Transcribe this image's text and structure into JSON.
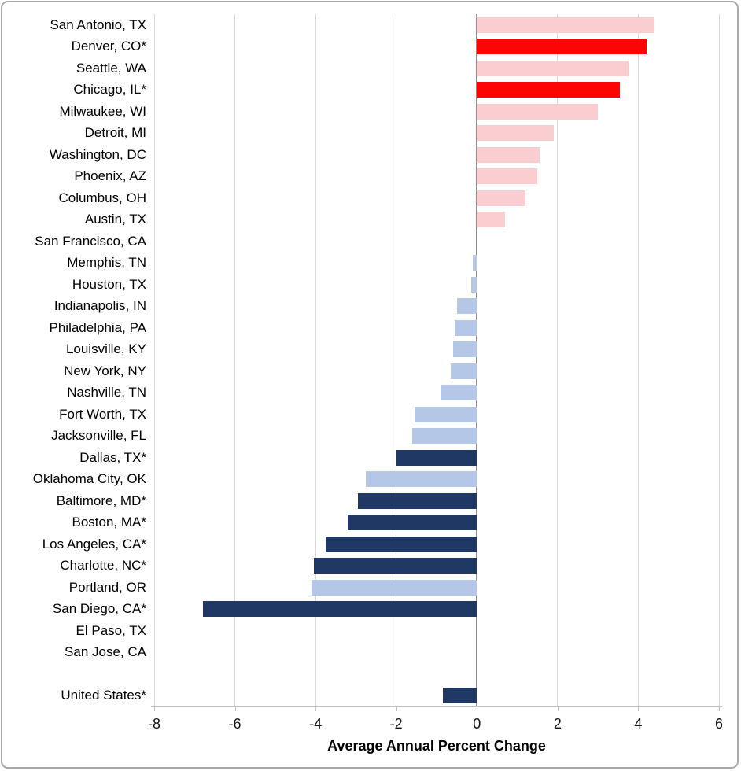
{
  "window": {
    "background": "#ffffff",
    "frame_border_color": "#a9a9a9"
  },
  "chart_data": {
    "type": "bar",
    "orientation": "horizontal",
    "title": "",
    "xlabel": "Average Annual Percent Change",
    "ylabel": "",
    "xlim": [
      -8,
      6
    ],
    "x_ticks": [
      -8,
      -6,
      -4,
      -2,
      0,
      2,
      4,
      6
    ],
    "x_tick_labels": [
      "-8",
      "-6",
      "-4",
      "-2",
      "0",
      "2",
      "4",
      "6"
    ],
    "grid": true,
    "legend": "none",
    "gap_before_last": true,
    "categories": [
      "San Antonio, TX",
      "Denver, CO*",
      "Seattle, WA",
      "Chicago, IL*",
      "Milwaukee, WI",
      "Detroit, MI",
      "Washington, DC",
      "Phoenix, AZ",
      "Columbus, OH",
      "Austin, TX",
      "San Francisco, CA",
      "Memphis, TN",
      "Houston, TX",
      "Indianapolis, IN",
      "Philadelphia, PA",
      "Louisville, KY",
      "New York, NY",
      "Nashville, TN",
      "Fort Worth, TX",
      "Jacksonville, FL",
      "Dallas, TX*",
      "Oklahoma City, OK",
      "Baltimore, MD*",
      "Boston, MA*",
      "Los Angeles, CA*",
      "Charlotte, NC*",
      "Portland, OR",
      "San Diego, CA*",
      "El Paso, TX",
      "San Jose, CA",
      "United States*"
    ],
    "values": [
      4.4,
      4.2,
      3.75,
      3.55,
      3.0,
      1.9,
      1.55,
      1.5,
      1.2,
      0.7,
      0.0,
      -0.1,
      -0.15,
      -0.5,
      -0.55,
      -0.6,
      -0.65,
      -0.9,
      -1.55,
      -1.6,
      -2.0,
      -2.75,
      -2.95,
      -3.2,
      -3.75,
      -4.05,
      -4.1,
      -6.8,
      0.0,
      0.0,
      -0.85
    ],
    "bar_color_keys": [
      "pink",
      "red",
      "pink",
      "red",
      "pink",
      "pink",
      "pink",
      "pink",
      "pink",
      "pink",
      "none",
      "light_blue",
      "light_blue",
      "light_blue",
      "light_blue",
      "light_blue",
      "light_blue",
      "light_blue",
      "light_blue",
      "light_blue",
      "navy",
      "light_blue",
      "navy",
      "navy",
      "navy",
      "navy",
      "light_blue",
      "navy",
      "none",
      "none",
      "navy"
    ],
    "colors": {
      "red": "#FB0505",
      "pink": "#FACDD1",
      "light_blue": "#B4C7E7",
      "navy": "#1F3864",
      "gridline": "#D9D9D9",
      "zero_line": "#8F8F8F",
      "axis_line": "#BFBFBF"
    }
  }
}
